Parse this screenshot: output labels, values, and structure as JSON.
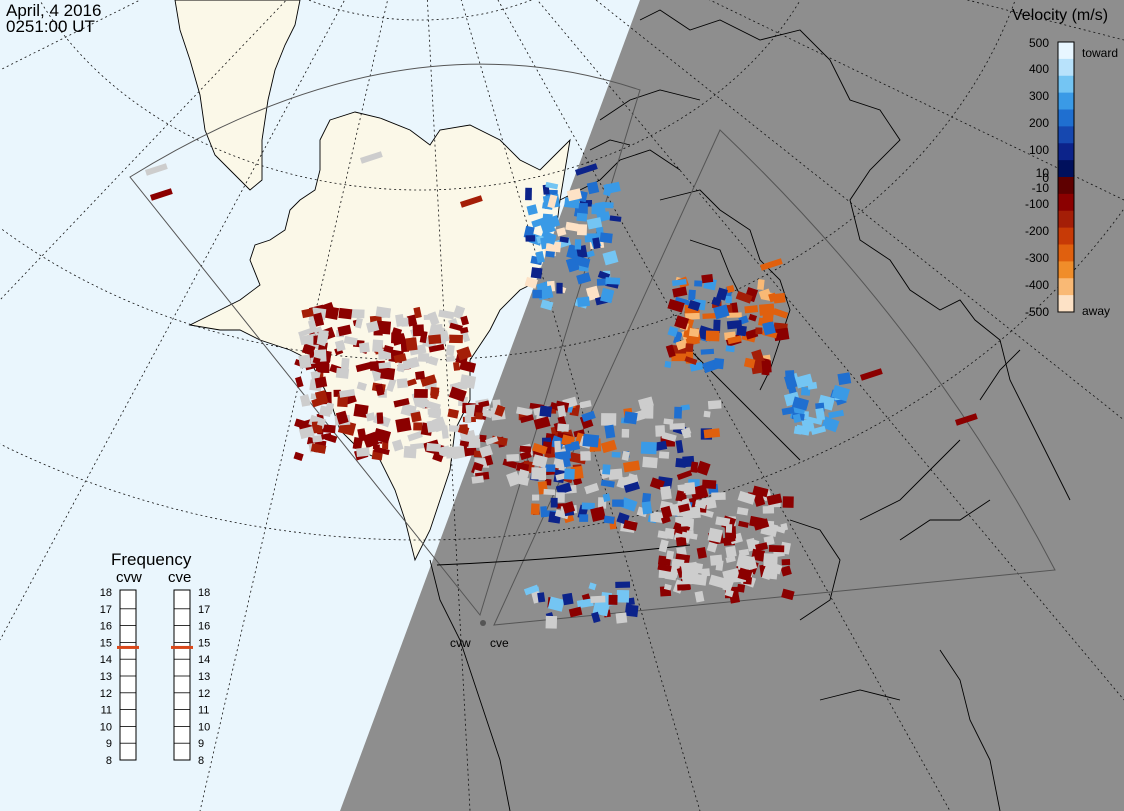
{
  "header": {
    "date": "April, 4 2016",
    "time": "0251:00 UT"
  },
  "colors": {
    "ocean": "#eaf6fd",
    "land": "#fbf8e8",
    "night": "#8e8e8e",
    "ground_scatter": "#cdcdcd"
  },
  "radars": [
    {
      "code": "cvw",
      "frequency_mhz": 14.7
    },
    {
      "code": "cve",
      "frequency_mhz": 14.7
    }
  ],
  "velocity_scale": {
    "title": "Velocity (m/s)",
    "ticks": [
      "500",
      "400",
      "300",
      "200",
      "100",
      "10",
      "0",
      "-10",
      "-100",
      "-200",
      "-300",
      "-400",
      "-500"
    ],
    "toward_label": "toward",
    "away_label": "away",
    "colors": [
      "#e8f6ff",
      "#b8e2fb",
      "#74c5f3",
      "#3a9ae6",
      "#1f6fd0",
      "#1648b0",
      "#0c238a",
      "#00105c",
      "#5e0000",
      "#8b0000",
      "#a41e07",
      "#c73a06",
      "#e0600e",
      "#f08d2a",
      "#f9b975",
      "#fde2c6"
    ]
  },
  "frequency_panel": {
    "title": "Frequency",
    "columns": [
      "cvw",
      "cve"
    ],
    "ticks": [
      "18",
      "17",
      "16",
      "15",
      "14",
      "13",
      "12",
      "11",
      "10",
      "9",
      "8"
    ]
  },
  "radar_labels": [
    "cvw",
    "cve"
  ]
}
